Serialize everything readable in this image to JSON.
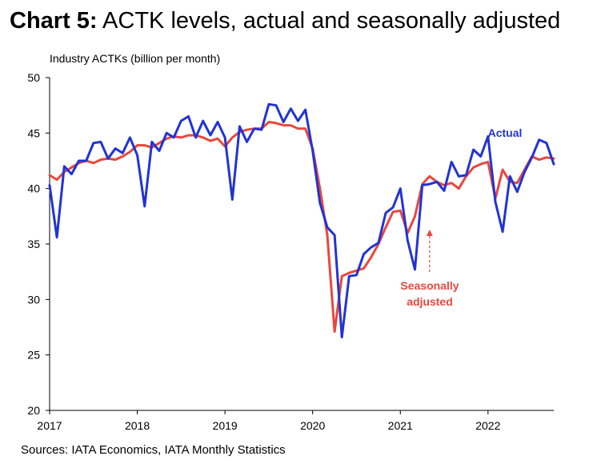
{
  "title": {
    "prefix": "Chart 5:",
    "main": "ACTK levels, actual and seasonally adjusted"
  },
  "sources": "Sources: IATA Economics, IATA Monthly Statistics",
  "colors": {
    "actual": "#2233d4",
    "seasonally_adjusted": "#e8473d",
    "axis": "#000000"
  },
  "chart_data": {
    "type": "line",
    "title": "ACTK levels, actual and seasonally adjusted",
    "ylabel": "Industry ACTKs (billion per month)",
    "xlabel": "",
    "ylim": [
      20,
      50
    ],
    "yticks": [
      20,
      25,
      30,
      35,
      40,
      45,
      50
    ],
    "xlim": [
      "2017-01",
      "2022-10"
    ],
    "xticks": [
      "2017",
      "2018",
      "2019",
      "2020",
      "2021",
      "2022"
    ],
    "grid": false,
    "legend": "inline labels",
    "annotations": [
      {
        "text": "Actual",
        "series": "Actual"
      },
      {
        "text": "Seasonally adjusted",
        "lines": [
          "Seasonally",
          "adjusted"
        ],
        "series": "Seasonally adjusted",
        "arrow": "dashed, pointing up"
      }
    ],
    "x": [
      "2017-01",
      "2017-02",
      "2017-03",
      "2017-04",
      "2017-05",
      "2017-06",
      "2017-07",
      "2017-08",
      "2017-09",
      "2017-10",
      "2017-11",
      "2017-12",
      "2018-01",
      "2018-02",
      "2018-03",
      "2018-04",
      "2018-05",
      "2018-06",
      "2018-07",
      "2018-08",
      "2018-09",
      "2018-10",
      "2018-11",
      "2018-12",
      "2019-01",
      "2019-02",
      "2019-03",
      "2019-04",
      "2019-05",
      "2019-06",
      "2019-07",
      "2019-08",
      "2019-09",
      "2019-10",
      "2019-11",
      "2019-12",
      "2020-01",
      "2020-02",
      "2020-03",
      "2020-04",
      "2020-05",
      "2020-06",
      "2020-07",
      "2020-08",
      "2020-09",
      "2020-10",
      "2020-11",
      "2020-12",
      "2021-01",
      "2021-02",
      "2021-03",
      "2021-04",
      "2021-05",
      "2021-06",
      "2021-07",
      "2021-08",
      "2021-09",
      "2021-10",
      "2021-11",
      "2021-12",
      "2022-01",
      "2022-02",
      "2022-03",
      "2022-04",
      "2022-05",
      "2022-06",
      "2022-07",
      "2022-08",
      "2022-09",
      "2022-10"
    ],
    "series": [
      {
        "name": "Actual",
        "values": [
          40.3,
          35.6,
          42.0,
          41.3,
          42.5,
          42.5,
          44.1,
          44.2,
          42.7,
          43.6,
          43.2,
          44.6,
          43.0,
          38.4,
          44.2,
          43.4,
          45.0,
          44.6,
          46.1,
          46.5,
          44.6,
          46.1,
          44.8,
          46.0,
          44.6,
          39.0,
          45.6,
          44.2,
          45.4,
          45.3,
          47.6,
          47.5,
          46.0,
          47.2,
          46.1,
          47.1,
          43.4,
          38.7,
          36.5,
          35.8,
          26.6,
          32.1,
          32.2,
          34.1,
          34.7,
          35.1,
          37.8,
          38.3,
          40.0,
          35.3,
          32.7,
          40.3,
          40.4,
          40.6,
          39.8,
          42.4,
          41.1,
          41.2,
          43.5,
          42.9,
          44.7,
          38.8,
          36.1,
          41.1,
          39.7,
          41.5,
          42.8,
          44.4,
          44.1,
          42.2
        ]
      },
      {
        "name": "Seasonally adjusted",
        "values": [
          41.2,
          40.8,
          41.5,
          41.9,
          42.3,
          42.5,
          42.3,
          42.6,
          42.7,
          42.6,
          42.9,
          43.3,
          43.9,
          43.9,
          43.7,
          44.1,
          44.5,
          44.7,
          44.6,
          44.8,
          44.8,
          44.6,
          44.3,
          44.5,
          43.8,
          44.6,
          45.1,
          45.3,
          45.4,
          45.4,
          46.0,
          45.9,
          45.7,
          45.7,
          45.4,
          45.4,
          43.6,
          40.0,
          35.8,
          27.1,
          32.1,
          32.4,
          32.6,
          32.8,
          33.8,
          35.0,
          36.5,
          37.9,
          38.0,
          36.0,
          37.5,
          40.4,
          41.1,
          40.6,
          40.3,
          40.5,
          40.0,
          41.1,
          41.9,
          42.2,
          42.4,
          39.1,
          41.7,
          40.6,
          40.5,
          41.7,
          42.9,
          42.6,
          42.8,
          42.7
        ]
      }
    ]
  }
}
